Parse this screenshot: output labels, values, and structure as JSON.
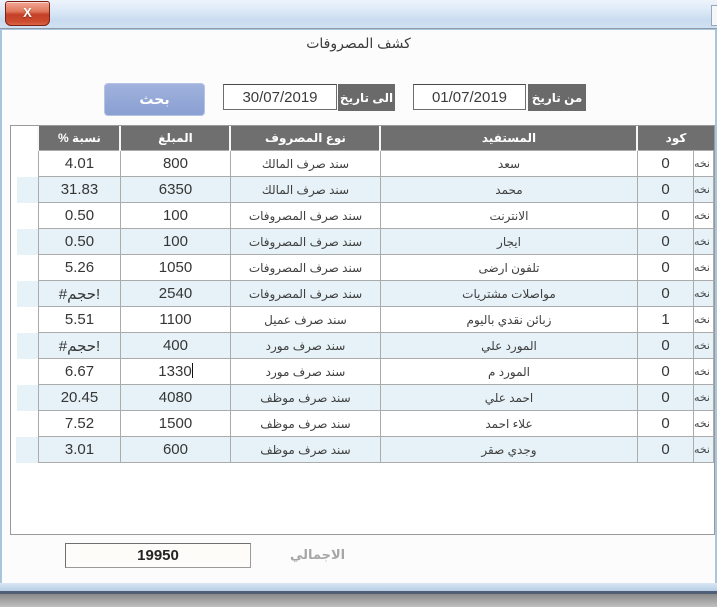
{
  "window": {
    "title": "كشف المصروفات",
    "close_label": "X"
  },
  "filters": {
    "from_label": "من تاريخ",
    "from_value": "01/07/2019",
    "to_label": "الى تاريخ",
    "to_value": "30/07/2019",
    "search_label": "بحث"
  },
  "table": {
    "headers": {
      "code": "كود",
      "beneficiary": "المستفيد",
      "expense_type": "نوع المصروف",
      "amount": "المبلغ",
      "percent": "نسبة %"
    },
    "clipped_cell_text": "نخه",
    "rows": [
      {
        "code": "0",
        "beneficiary": "سعد",
        "type": "سند صرف المالك",
        "amount": "800",
        "percent": "4.01"
      },
      {
        "code": "0",
        "beneficiary": "محمد",
        "type": "سند صرف المالك",
        "amount": "6350",
        "percent": "31.83"
      },
      {
        "code": "0",
        "beneficiary": "الانترنت",
        "type": "سند صرف المصروفات",
        "amount": "100",
        "percent": "0.50"
      },
      {
        "code": "0",
        "beneficiary": "ايجار",
        "type": "سند صرف المصروفات",
        "amount": "100",
        "percent": "0.50"
      },
      {
        "code": "0",
        "beneficiary": "تلفون ارضى",
        "type": "سند صرف المصروفات",
        "amount": "1050",
        "percent": "5.26"
      },
      {
        "code": "0",
        "beneficiary": "مواصلات مشتريات",
        "type": "سند صرف المصروفات",
        "amount": "2540",
        "percent": "#حجم!"
      },
      {
        "code": "1",
        "beneficiary": "زبائن نقدي باليوم",
        "type": "سند صرف عميل",
        "amount": "1100",
        "percent": "5.51"
      },
      {
        "code": "0",
        "beneficiary": "المورد علي",
        "type": "سند صرف مورد",
        "amount": "400",
        "percent": "#حجم!"
      },
      {
        "code": "0",
        "beneficiary": "المورد م",
        "type": "سند صرف مورد",
        "amount": "1330",
        "percent": "6.67",
        "editing": true
      },
      {
        "code": "0",
        "beneficiary": "احمد علي",
        "type": "سند صرف موظف",
        "amount": "4080",
        "percent": "20.45"
      },
      {
        "code": "0",
        "beneficiary": "علاء احمد",
        "type": "سند صرف موظف",
        "amount": "1500",
        "percent": "7.52"
      },
      {
        "code": "0",
        "beneficiary": "وجدي صقر",
        "type": "سند صرف موظف",
        "amount": "600",
        "percent": "3.01"
      }
    ]
  },
  "footer": {
    "total_label": "الاجمالي",
    "total_value": "19950"
  },
  "colors": {
    "header_bg": "#6f6f6f",
    "row_alt": "#e6f2f7",
    "search_button": "#8fa5d6",
    "label_bg": "#6a6a6a",
    "close_red": "#c43f27",
    "titlebar": "#d4e4f4"
  }
}
